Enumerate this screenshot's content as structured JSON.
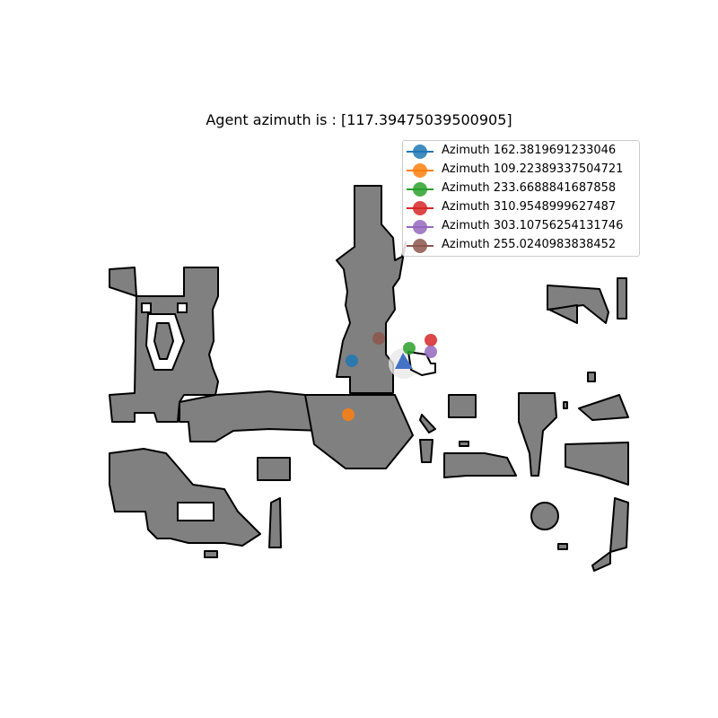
{
  "title": "Agent azimuth is : [117.39475039500905]",
  "map": {
    "free_color": "#808080",
    "wall_color": "#000000",
    "background_color": "#ffffff"
  },
  "agent": {
    "azimuth": 117.39475039500905,
    "color": "#4472c4",
    "icon": "triangle-agent-icon"
  },
  "legend": {
    "entries": [
      {
        "label": "Azimuth 162.3819691233046",
        "color": "#1f77b4"
      },
      {
        "label": "Azimuth 109.22389337504721",
        "color": "#ff7f0e"
      },
      {
        "label": "Azimuth 233.6688841687858",
        "color": "#2ca02c"
      },
      {
        "label": "Azimuth 310.9548999627487",
        "color": "#d62728"
      },
      {
        "label": "Azimuth 303.10756254131746",
        "color": "#9467bd"
      },
      {
        "label": "Azimuth 255.0240983838452",
        "color": "#8c564b"
      }
    ]
  }
}
